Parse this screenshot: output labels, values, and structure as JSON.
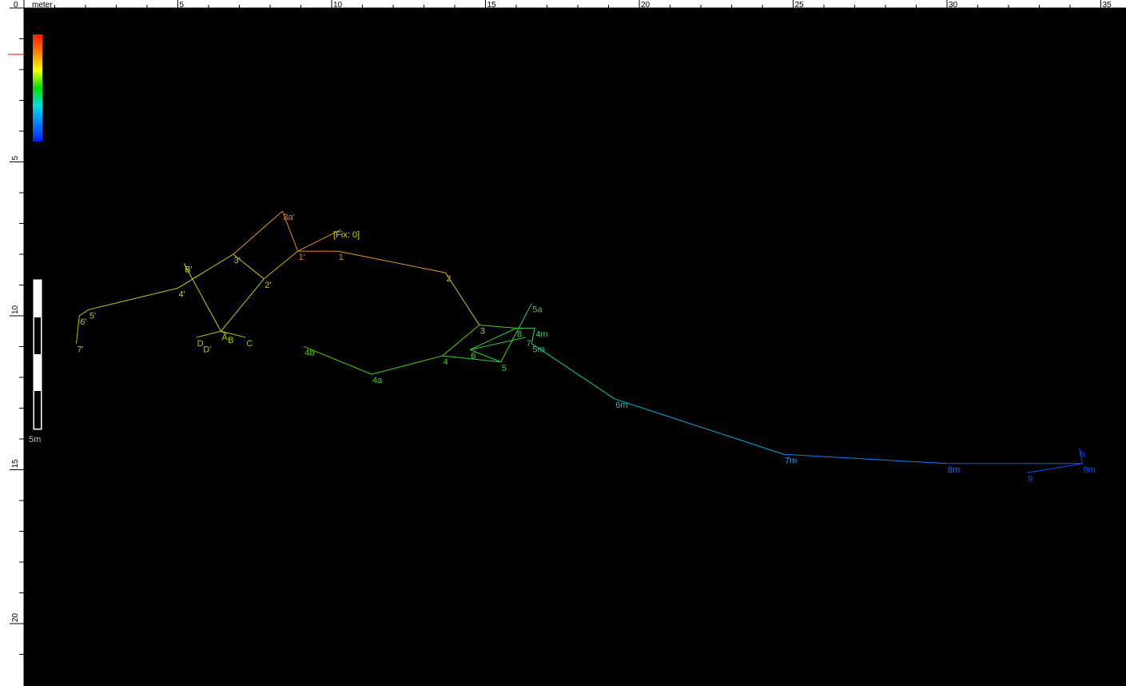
{
  "ruler": {
    "unit_label": "meter",
    "top_ticks": [
      "0",
      "5",
      "10",
      "15",
      "20",
      "25",
      "30",
      "35"
    ],
    "left_ticks": [
      "5",
      "10",
      "15",
      "20"
    ]
  },
  "scale_bar": {
    "label": "5m"
  },
  "fix_marker": {
    "label": "[Fix: 0]"
  },
  "colors": {
    "background": "#000000",
    "ruler_bg": "#ffffff",
    "ruler_marker": "#ff0000",
    "scale_gradient": [
      "#ff1a00",
      "#ff8000",
      "#ffff00",
      "#00e000",
      "#00e0e0",
      "#0080ff",
      "#0020ff"
    ]
  },
  "stations": [
    {
      "id": "fix",
      "label": "",
      "x": 10.3,
      "y": 7.2,
      "color": "#e08a1a"
    },
    {
      "id": "s1",
      "label": "1",
      "x": 10.2,
      "y": 7.9,
      "color": "#e08a1a"
    },
    {
      "id": "s2",
      "label": "2",
      "x": 13.7,
      "y": 8.6,
      "color": "#e0b000"
    },
    {
      "id": "s3",
      "label": "3",
      "x": 14.8,
      "y": 10.3,
      "color": "#a8d000"
    },
    {
      "id": "s4",
      "label": "4",
      "x": 13.6,
      "y": 11.3,
      "color": "#40d000"
    },
    {
      "id": "s4a",
      "label": "4a",
      "x": 11.3,
      "y": 11.9,
      "color": "#40d000"
    },
    {
      "id": "s4b",
      "label": "4b",
      "x": 9.1,
      "y": 11.0,
      "color": "#40d000"
    },
    {
      "id": "s5",
      "label": "5",
      "x": 15.5,
      "y": 11.5,
      "color": "#30d030"
    },
    {
      "id": "s6",
      "label": "6",
      "x": 14.5,
      "y": 11.1,
      "color": "#30d030"
    },
    {
      "id": "s7",
      "label": "7",
      "x": 16.3,
      "y": 10.7,
      "color": "#30d040"
    },
    {
      "id": "s8",
      "label": "8",
      "x": 16.0,
      "y": 10.4,
      "color": "#30d040"
    },
    {
      "id": "s5a",
      "label": "5a",
      "x": 16.5,
      "y": 9.6,
      "color": "#30d040"
    },
    {
      "id": "s4m",
      "label": "4m",
      "x": 16.6,
      "y": 10.4,
      "color": "#30d050"
    },
    {
      "id": "s5m",
      "label": "5m",
      "x": 16.5,
      "y": 10.9,
      "color": "#20d070"
    },
    {
      "id": "s6m",
      "label": "6m",
      "x": 19.2,
      "y": 12.7,
      "color": "#00c8a0"
    },
    {
      "id": "s7m",
      "label": "7m",
      "x": 24.7,
      "y": 14.5,
      "color": "#00a8e0"
    },
    {
      "id": "s8m",
      "label": "8m",
      "x": 30.0,
      "y": 14.8,
      "color": "#0070ff"
    },
    {
      "id": "s9m",
      "label": "9m",
      "x": 34.4,
      "y": 14.8,
      "color": "#0050ff"
    },
    {
      "id": "sb",
      "label": "b",
      "x": 34.3,
      "y": 14.3,
      "color": "#0040ff"
    },
    {
      "id": "s9",
      "label": "9",
      "x": 32.6,
      "y": 15.1,
      "color": "#0050ff"
    },
    {
      "id": "s1p",
      "label": "1'",
      "x": 8.9,
      "y": 7.9,
      "color": "#e08a1a"
    },
    {
      "id": "s3ap",
      "label": "3a'",
      "x": 8.4,
      "y": 6.6,
      "color": "#e08a1a"
    },
    {
      "id": "s3p",
      "label": "3'",
      "x": 6.8,
      "y": 8.0,
      "color": "#d0c000"
    },
    {
      "id": "s2p",
      "label": "2'",
      "x": 7.8,
      "y": 8.8,
      "color": "#d0c000"
    },
    {
      "id": "s4p",
      "label": "4'",
      "x": 5.0,
      "y": 9.1,
      "color": "#d0d000"
    },
    {
      "id": "sBp",
      "label": "B'",
      "x": 5.2,
      "y": 8.3,
      "color": "#d0d000"
    },
    {
      "id": "sA",
      "label": "A",
      "x": 6.4,
      "y": 10.5,
      "color": "#a0d000"
    },
    {
      "id": "sB",
      "label": "B",
      "x": 6.6,
      "y": 10.6,
      "color": "#a0d000"
    },
    {
      "id": "sC",
      "label": "C",
      "x": 7.2,
      "y": 10.7,
      "color": "#a0d000"
    },
    {
      "id": "sD",
      "label": "D",
      "x": 5.6,
      "y": 10.7,
      "color": "#a0d000"
    },
    {
      "id": "sDp",
      "label": "D'",
      "x": 5.8,
      "y": 10.9,
      "color": "#a0d000"
    },
    {
      "id": "s5p",
      "label": "5'",
      "x": 2.1,
      "y": 9.8,
      "color": "#a8d000"
    },
    {
      "id": "s6p",
      "label": "6'",
      "x": 1.8,
      "y": 10.0,
      "color": "#a8d000"
    },
    {
      "id": "s7p",
      "label": "7'",
      "x": 1.7,
      "y": 10.9,
      "color": "#a0d000"
    }
  ],
  "legs": [
    [
      "fix",
      "s1p",
      "#e08a1a"
    ],
    [
      "s1p",
      "s1",
      "#e08a1a"
    ],
    [
      "s1",
      "s2",
      "#e09a10"
    ],
    [
      "s2",
      "s3",
      "#c8c800"
    ],
    [
      "s3",
      "s4",
      "#60d000"
    ],
    [
      "s4",
      "s4a",
      "#40d000"
    ],
    [
      "s4a",
      "s4b",
      "#40d000"
    ],
    [
      "s4",
      "s5",
      "#30d030"
    ],
    [
      "s5",
      "s6",
      "#30d030"
    ],
    [
      "s6",
      "s7",
      "#30d030"
    ],
    [
      "s6",
      "s8",
      "#30d030"
    ],
    [
      "s5",
      "s5a",
      "#30d040"
    ],
    [
      "s3",
      "s8",
      "#50d000"
    ],
    [
      "s8",
      "s4m",
      "#30d040"
    ],
    [
      "s4m",
      "s5m",
      "#30d060"
    ],
    [
      "s5m",
      "s6m",
      "#10d090"
    ],
    [
      "s6m",
      "s7m",
      "#00b0d8"
    ],
    [
      "s7m",
      "s8m",
      "#0080ff"
    ],
    [
      "s8m",
      "s9m",
      "#0060ff"
    ],
    [
      "s9m",
      "sb",
      "#0040ff"
    ],
    [
      "s9m",
      "s9",
      "#0050ff"
    ],
    [
      "s1p",
      "s3ap",
      "#e08a1a"
    ],
    [
      "s3ap",
      "s3p",
      "#e09a10"
    ],
    [
      "s3p",
      "s2p",
      "#d0c000"
    ],
    [
      "s2p",
      "s1p",
      "#d0b000"
    ],
    [
      "s3p",
      "s4p",
      "#d0d000"
    ],
    [
      "s4p",
      "s5p",
      "#b0d000"
    ],
    [
      "s5p",
      "s6p",
      "#a8d000"
    ],
    [
      "s6p",
      "s7p",
      "#a0d000"
    ],
    [
      "sBp",
      "sA",
      "#c0d000"
    ],
    [
      "s2p",
      "sA",
      "#b8d000"
    ],
    [
      "sA",
      "sB",
      "#a0d000"
    ],
    [
      "sA",
      "sC",
      "#a0d000"
    ],
    [
      "sA",
      "sD",
      "#a0d000"
    ]
  ]
}
